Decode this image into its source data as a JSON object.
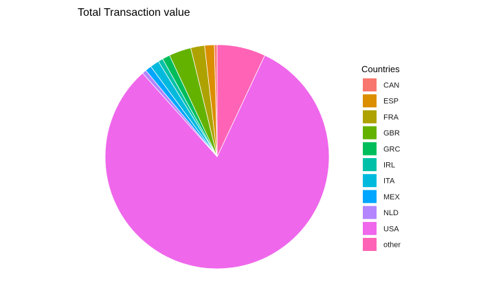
{
  "chart_data": {
    "type": "pie",
    "title": "Total Transaction value",
    "legend_title": "Countries",
    "legend_position": "right",
    "grid": false,
    "slices": [
      {
        "label": "CAN",
        "value": 0.4,
        "color": "#F8766D"
      },
      {
        "label": "ESP",
        "value": 1.4,
        "color": "#DB8E00"
      },
      {
        "label": "FRA",
        "value": 2.0,
        "color": "#AEA200"
      },
      {
        "label": "GBR",
        "value": 3.2,
        "color": "#64B200"
      },
      {
        "label": "GRC",
        "value": 1.1,
        "color": "#00BD5C"
      },
      {
        "label": "IRL",
        "value": 0.7,
        "color": "#00C1A7"
      },
      {
        "label": "ITA",
        "value": 1.3,
        "color": "#00BADE"
      },
      {
        "label": "MEX",
        "value": 0.9,
        "color": "#00A6FF"
      },
      {
        "label": "NLD",
        "value": 0.6,
        "color": "#B385FF"
      },
      {
        "label": "USA",
        "value": 81.4,
        "color": "#EF67EB"
      },
      {
        "label": "other",
        "value": 7.0,
        "color": "#FF63B6"
      }
    ]
  }
}
